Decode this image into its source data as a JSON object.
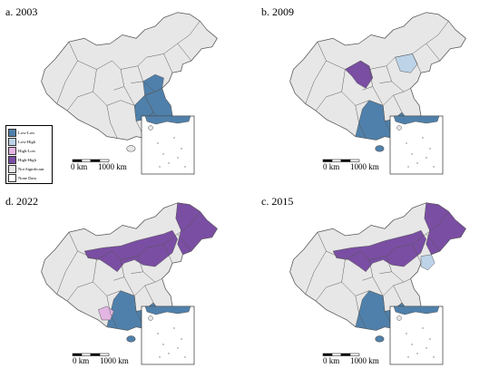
{
  "colors": {
    "low_low": "#4f80ab",
    "low_high": "#bcd3e8",
    "high_low": "#e2b5e2",
    "high_high": "#7a4ea3",
    "not_significant": "#e7e7e7",
    "none_data": "#ffffff",
    "border": "#555555"
  },
  "legend": {
    "items": [
      {
        "label": "Low-Low",
        "color_key": "low_low"
      },
      {
        "label": "Low-High",
        "color_key": "low_high"
      },
      {
        "label": "High-Low",
        "color_key": "high_low"
      },
      {
        "label": "High-High",
        "color_key": "high_high"
      },
      {
        "label": "Not Significant",
        "color_key": "not_significant"
      },
      {
        "label": "None Data",
        "color_key": "none_data"
      }
    ]
  },
  "panels": [
    {
      "label": "a. 2003",
      "scale_start": "0 km",
      "scale_end": "1000 km",
      "clusters": {
        "low_low": [
          "North China Plain",
          "Yangtze River Delta",
          "Southeast coast"
        ],
        "high_high": [],
        "low_high": [],
        "high_low": []
      }
    },
    {
      "label": "b. 2009",
      "scale_start": "0 km",
      "scale_end": "1000 km",
      "clusters": {
        "low_low": [
          "Southeast China"
        ],
        "high_high": [
          "Northwest China"
        ],
        "low_high": [
          "North China"
        ],
        "high_low": []
      }
    },
    {
      "label": "d. 2022",
      "scale_start": "0 km",
      "scale_end": "1000 km",
      "clusters": {
        "low_low": [
          "South China"
        ],
        "high_high": [
          "North China belt",
          "Northeast China"
        ],
        "low_high": [],
        "high_low": [
          "Southwest China"
        ]
      }
    },
    {
      "label": "c. 2015",
      "scale_start": "0 km",
      "scale_end": "1000 km",
      "clusters": {
        "low_low": [
          "South China"
        ],
        "high_high": [
          "North China belt",
          "Northeast China"
        ],
        "low_high": [
          "Bohai region"
        ],
        "high_low": []
      }
    }
  ]
}
